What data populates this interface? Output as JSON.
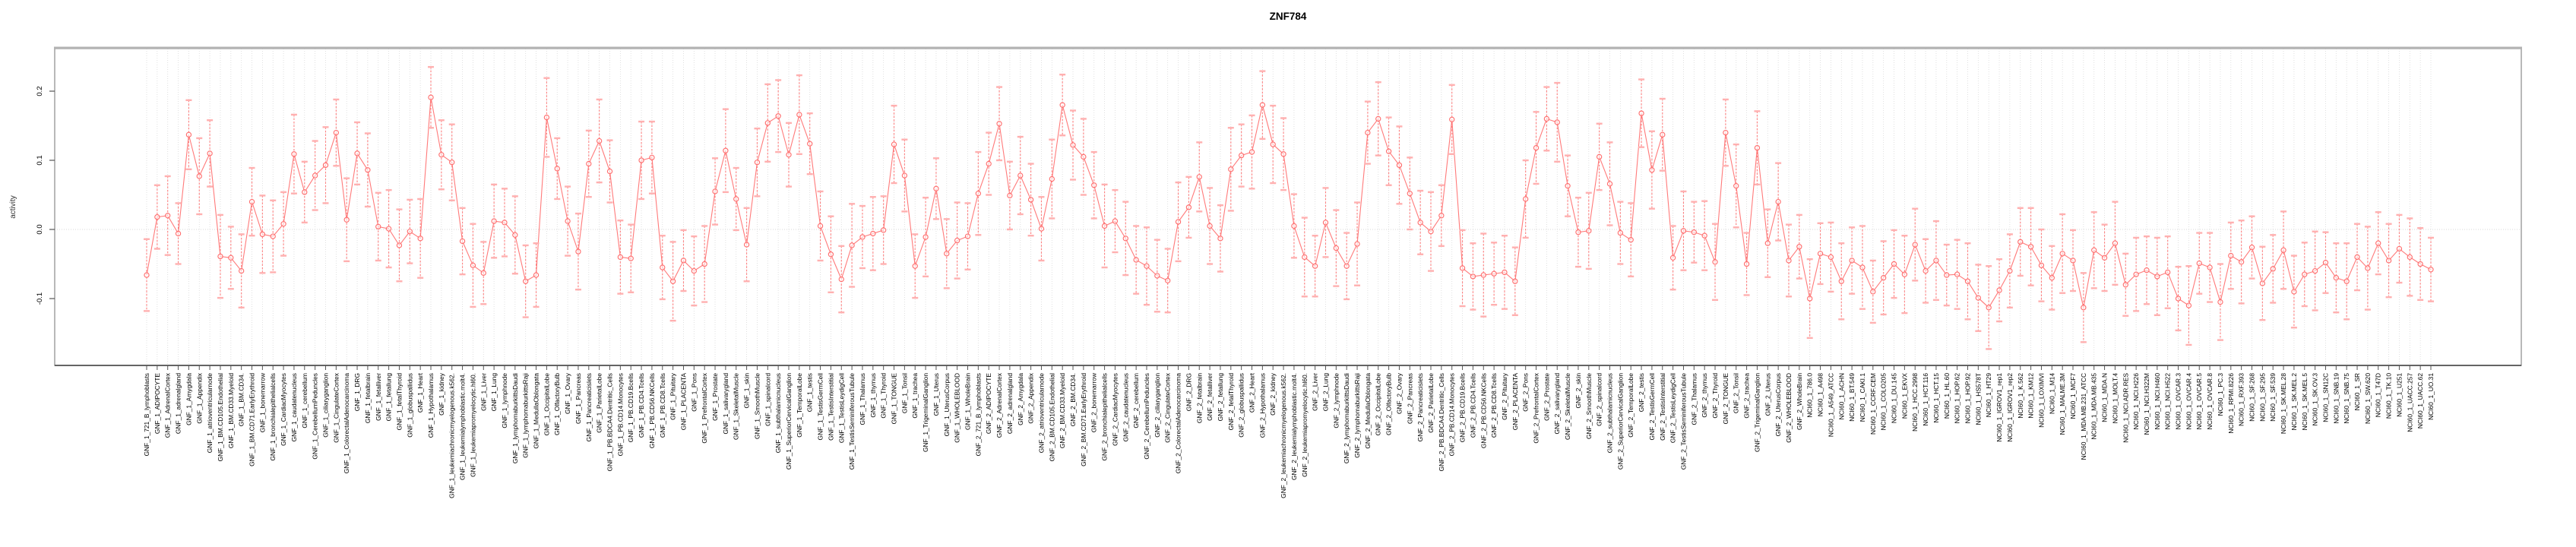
{
  "title": "ZNF784",
  "colors": {
    "series": "#ff6b6b",
    "error_cap": "#ffb0b0",
    "gridline": "#d9d9d9",
    "frame": "#999999",
    "frame_top": "#b3b3b3",
    "axis": "#555555",
    "text": "#000000"
  },
  "chart_data": {
    "type": "line",
    "error_bars": true,
    "title": "ZNF784",
    "xlabel": "",
    "ylabel": "activity",
    "ylim": [
      -0.197,
      0.262
    ],
    "grid": "vertical-dotted-per-category, dotted-zero-line",
    "legend": "none",
    "yticks": [
      {
        "label": "0.2",
        "value": 0.2
      },
      {
        "label": "0.1",
        "value": 0.1
      },
      {
        "label": "0.0",
        "value": 0.0
      },
      {
        "label": "-0.1",
        "value": -0.1
      }
    ],
    "categories": [
      "GNF_1_721_B_lymphoblasts",
      "GNF_1_ADIPOCYTE",
      "GNF_1_AdrenalCortex",
      "GNF_1_adrenalgland",
      "GNF_1_Amygdala",
      "GNF_1_Appendix",
      "GNF_1_atrioventricularnode",
      "GNF_1_BM.CD105.Endothelial",
      "GNF_1_BM.CD33.Myeloid",
      "GNF_1_BM.CD34.",
      "GNF_1_BM.CD71.EarlyErythroid",
      "GNF_1_bonemarrow",
      "GNF_1_bronchialepithelialcells",
      "GNF_1_CardiacMyocytes",
      "GNF_1_caudatenucleus",
      "GNF_1_cerebellum",
      "GNF_1_CerebellumPeduncles",
      "GNF_1_ciliaryganglion",
      "GNF_1_CingulateCortex",
      "GNF_1_ColorectalAdenocarcinoma",
      "GNF_1_DRG",
      "GNF_1_fetalbrain",
      "GNF_1_fetalliver",
      "GNF_1_fetallung",
      "GNF_1_fetalThyroid",
      "GNF_1_globuspallidus",
      "GNF_1_Heart",
      "GNF_1_Hypothalamus",
      "GNF_1_kidney",
      "GNF_1_leukemiachronicmyelogenous.k562.",
      "GNF_1_leukemialymphoblastic.molt4.",
      "GNF_1_leukemiapromyelocytic.hl60.",
      "GNF_1_Liver",
      "GNF_1_Lung",
      "GNF_1_lymphnode",
      "GNF_1_lymphomaburkittsDaudi",
      "GNF_1_lymphomaburkittsRaji",
      "GNF_1_MedullaOblongata",
      "GNF_1_OccipitalLobe",
      "GNF_1_OlfactoryBulb",
      "GNF_1_Ovary",
      "GNF_1_Pancreas",
      "GNF_1_Pancreaticislets",
      "GNF_1_ParietalLobe",
      "GNF_1_PB.BDCA4.Dentritic_Cells",
      "GNF_1_PB.CD14.Monocytes",
      "GNF_1_PB.CD19.Bcells",
      "GNF_1_PB.CD4.Tcells",
      "GNF_1_PB.CD56.NKCells",
      "GNF_1_PB.CD8.Tcells",
      "GNF_1_Pituitary",
      "GNF_1_PLACENTA",
      "GNF_1_Pons",
      "GNF_1_PrefrontalCortex",
      "GNF_1_Prostate",
      "GNF_1_salivarygland",
      "GNF_1_SkeletalMuscle",
      "GNF_1_skin",
      "GNF_1_SmoothMuscle",
      "GNF_1_spinalcord",
      "GNF_1_subthalamicnucleus",
      "GNF_1_SuperiorCervicalGanglion",
      "GNF_1_TemporalLobe",
      "GNF_1_testis",
      "GNF_1_TestisGermCell",
      "GNF_1_TestisInterstitial",
      "GNF_1_TestisLeydigCell",
      "GNF_1_TestisSeminiferousTubule",
      "GNF_1_Thalamus",
      "GNF_1_thymus",
      "GNF_1_Thyroid",
      "GNF_1_TONGUE",
      "GNF_1_Tonsil",
      "GNF_1_trachea",
      "GNF_1_TrigeminalGanglion",
      "GNF_1_Uterus",
      "GNF_1_UterusCorpus",
      "GNF_1_WHOLEBLOOD",
      "GNF_1_WholeBrain",
      "GNF_2_721_B_lymphoblasts",
      "GNF_2_ADIPOCYTE",
      "GNF_2_AdrenalCortex",
      "GNF_2_adrenalgland",
      "GNF_2_Amygdala",
      "GNF_2_Appendix",
      "GNF_2_atrioventricularnode",
      "GNF_2_BM.CD105.Endothelial",
      "GNF_2_BM.CD33.Myeloid",
      "GNF_2_BM.CD34.",
      "GNF_2_BM.CD71.EarlyErythroid",
      "GNF_2_bonemarrow",
      "GNF_2_bronchialepithelialcells",
      "GNF_2_CardiacMyocytes",
      "GNF_2_caudatenucleus",
      "GNF_2_cerebellum",
      "GNF_2_CerebellumPeduncles",
      "GNF_2_ciliaryganglion",
      "GNF_2_CingulateCortex",
      "GNF_2_ColorectalAdenocarcinoma",
      "GNF_2_DRG",
      "GNF_2_fetalbrain",
      "GNF_2_fetalliver",
      "GNF_2_fetallung",
      "GNF_2_fetalThyroid",
      "GNF_2_globuspallidus",
      "GNF_2_Heart",
      "GNF_2_Hypothalamus",
      "GNF_2_kidney",
      "GNF_2_leukemiachronicmyelogenous.k562.",
      "GNF_2_leukemialymphoblastic.molt4.",
      "GNF_2_leukemiapromyelocytic.hl60.",
      "GNF_2_Liver",
      "GNF_2_Lung",
      "GNF_2_lymphnode",
      "GNF_2_lymphomaburkittsDaudi",
      "GNF_2_lymphomaburkittsRaji",
      "GNF_2_MedullaOblongata",
      "GNF_2_OccipitalLobe",
      "GNF_2_OlfactoryBulb",
      "GNF_2_Ovary",
      "GNF_2_Pancreas",
      "GNF_2_Pancreaticislets",
      "GNF_2_ParietalLobe",
      "GNF_2_PB.BDCA4.Dentritic_Cells",
      "GNF_2_PB.CD14.Monocytes",
      "GNF_2_PB.CD19.Bcells",
      "GNF_2_PB.CD4.Tcells",
      "GNF_2_PB.CD56.NKCells",
      "GNF_2_PB.CD8.Tcells",
      "GNF_2_Pituitary",
      "GNF_2_PLACENTA",
      "GNF_2_Pons",
      "GNF_2_PrefrontalCortex",
      "GNF_2_Prostate",
      "GNF_2_salivarygland",
      "GNF_2_SkeletalMuscle",
      "GNF_2_skin",
      "GNF_2_SmoothMuscle",
      "GNF_2_spinalcord",
      "GNF_2_subthalamicnucleus",
      "GNF_2_SuperiorCervicalGanglion",
      "GNF_2_TemporalLobe",
      "GNF_2_testis",
      "GNF_2_TestisGermCell",
      "GNF_2_TestisInterstitial",
      "GNF_2_TestisLeydigCell",
      "GNF_2_TestisSeminiferousTubule",
      "GNF_2_Thalamus",
      "GNF_2_thymus",
      "GNF_2_Thyroid",
      "GNF_2_TONGUE",
      "GNF_2_Tonsil",
      "GNF_2_trachea",
      "GNF_2_TrigeminalGanglion",
      "GNF_2_Uterus",
      "GNF_2_UterusCorpus",
      "GNF_2_WHOLEBLOOD",
      "GNF_2_WholeBrain",
      "NCI60_1_786.0",
      "NCI60_1_A498",
      "NCI60_1_A549_ATCC",
      "NCI60_1_ACHN",
      "NCI60_1_BT.549",
      "NCI60_1_CAKI.1",
      "NCI60_1_CCRF.CEM",
      "NCI60_1_COLO205",
      "NCI60_1_DU.145",
      "NCI60_1_EKVX",
      "NCI60_1_HCC.2998",
      "NCI60_1_HCT.116",
      "NCI60_1_HCT.15",
      "NCI60_1_HL.60",
      "NCI60_1_HOP.62",
      "NCI60_1_HOP.92",
      "NCI60_1_HS578T",
      "NCI60_1_HT29",
      "NCI60_1_IGROV1_rep1",
      "NCI60_1_IGROV1_rep2",
      "NCI60_1_K.562",
      "NCI60_1_KM12",
      "NCI60_1_LOXIMVI",
      "NCI60_1_M14",
      "NCI60_1_MALME.3M",
      "NCI60_1_MCF7",
      "NCI60_1_MDA.MB.231_ATCC",
      "NCI60_1_MDA.MB.435",
      "NCI60_1_MDA.N",
      "NCI60_1_MOLT.4",
      "NCI60_1_NCI.ADR.RES",
      "NCI60_1_NCI.H226",
      "NCI60_1_NCI.H322M",
      "NCI60_1_NCI.H460",
      "NCI60_1_NCI.H522",
      "NCI60_1_OVCAR.3",
      "NCI60_1_OVCAR.4",
      "NCI60_1_OVCAR.5",
      "NCI60_1_OVCAR.8",
      "NCI60_1_PC.3",
      "NCI60_1_RPMI.8226",
      "NCI60_1_RXF.393",
      "NCI60_1_SF.268",
      "NCI60_1_SF.295",
      "NCI60_1_SF.539",
      "NCI60_1_SK.MEL.28",
      "NCI60_1_SK.MEL.2",
      "NCI60_1_SK.MEL.5",
      "NCI60_1_SK.OV.3",
      "NCI60_1_SN12C",
      "NCI60_1_SNB.19",
      "NCI60_1_SNB.75",
      "NCI60_1_SR",
      "NCI60_1_SW.620",
      "NCI60_1_T47D",
      "NCI60_1_TK.10",
      "NCI60_1_U251",
      "NCI60_1_UACC.257",
      "NCI60_1_UACC.62",
      "NCI60_1_UO.31"
    ],
    "values": [
      -0.066,
      0.018,
      0.02,
      -0.006,
      0.137,
      0.077,
      0.11,
      -0.039,
      -0.041,
      -0.06,
      0.04,
      -0.007,
      -0.01,
      0.008,
      0.109,
      0.054,
      0.078,
      0.093,
      0.14,
      0.014,
      0.11,
      0.086,
      0.004,
      0.001,
      -0.023,
      -0.003,
      -0.013,
      0.191,
      0.108,
      0.097,
      -0.017,
      -0.052,
      -0.063,
      0.012,
      0.01,
      -0.008,
      -0.075,
      -0.066,
      0.162,
      0.088,
      0.012,
      -0.032,
      0.095,
      0.128,
      0.084,
      -0.04,
      -0.042,
      0.1,
      0.104,
      -0.055,
      -0.075,
      -0.045,
      -0.06,
      -0.05,
      0.055,
      0.114,
      0.044,
      -0.022,
      0.097,
      0.154,
      0.164,
      0.108,
      0.166,
      0.124,
      0.005,
      -0.036,
      -0.072,
      -0.023,
      -0.011,
      -0.006,
      -0.001,
      0.123,
      0.078,
      -0.053,
      -0.011,
      0.059,
      -0.035,
      -0.016,
      -0.01,
      0.052,
      0.095,
      0.153,
      0.049,
      0.078,
      0.043,
      0.001,
      0.073,
      0.18,
      0.122,
      0.105,
      0.064,
      0.005,
      0.012,
      -0.013,
      -0.044,
      -0.053,
      -0.067,
      -0.074,
      0.011,
      0.032,
      0.076,
      0.005,
      -0.013,
      0.087,
      0.107,
      0.112,
      0.18,
      0.123,
      0.109,
      0.005,
      -0.04,
      -0.053,
      0.01,
      -0.027,
      -0.053,
      -0.021,
      0.14,
      0.16,
      0.113,
      0.093,
      0.052,
      0.01,
      -0.003,
      0.02,
      0.159,
      -0.056,
      -0.068,
      -0.066,
      -0.064,
      -0.062,
      -0.075,
      0.044,
      0.118,
      0.16,
      0.155,
      0.063,
      -0.004,
      -0.002,
      0.105,
      0.066,
      -0.005,
      -0.015,
      0.168,
      0.086,
      0.137,
      -0.041,
      -0.002,
      -0.004,
      -0.009,
      -0.047,
      0.14,
      0.063,
      -0.05,
      0.118,
      -0.02,
      0.04,
      -0.045,
      -0.025,
      -0.1,
      -0.035,
      -0.04,
      -0.075,
      -0.045,
      -0.055,
      -0.09,
      -0.07,
      -0.05,
      -0.065,
      -0.022,
      -0.06,
      -0.045,
      -0.066,
      -0.065,
      -0.075,
      -0.099,
      -0.113,
      -0.088,
      -0.06,
      -0.018,
      -0.025,
      -0.052,
      -0.07,
      -0.035,
      -0.045,
      -0.113,
      -0.03,
      -0.041,
      -0.02,
      -0.08,
      -0.065,
      -0.059,
      -0.068,
      -0.062,
      -0.1,
      -0.11,
      -0.049,
      -0.055,
      -0.105,
      -0.038,
      -0.047,
      -0.026,
      -0.078,
      -0.057,
      -0.03,
      -0.09,
      -0.065,
      -0.06,
      -0.048,
      -0.07,
      -0.075,
      -0.04,
      -0.056,
      -0.02,
      -0.045,
      -0.028,
      -0.04,
      -0.05,
      -0.058
    ],
    "errors": [
      0.052,
      0.046,
      0.057,
      0.044,
      0.05,
      0.055,
      0.048,
      0.06,
      0.045,
      0.053,
      0.049,
      0.056,
      0.052,
      0.046,
      0.057,
      0.044,
      0.05,
      0.055,
      0.048,
      0.06,
      0.045,
      0.053,
      0.049,
      0.056,
      0.052,
      0.046,
      0.057,
      0.044,
      0.05,
      0.055,
      0.048,
      0.06,
      0.045,
      0.053,
      0.049,
      0.056,
      0.052,
      0.046,
      0.057,
      0.044,
      0.05,
      0.055,
      0.048,
      0.06,
      0.045,
      0.053,
      0.049,
      0.056,
      0.052,
      0.046,
      0.057,
      0.044,
      0.05,
      0.055,
      0.048,
      0.06,
      0.045,
      0.053,
      0.049,
      0.056,
      0.052,
      0.046,
      0.057,
      0.044,
      0.05,
      0.055,
      0.048,
      0.06,
      0.045,
      0.053,
      0.049,
      0.056,
      0.052,
      0.046,
      0.057,
      0.044,
      0.05,
      0.055,
      0.048,
      0.06,
      0.045,
      0.053,
      0.049,
      0.056,
      0.052,
      0.046,
      0.057,
      0.044,
      0.05,
      0.055,
      0.048,
      0.06,
      0.045,
      0.053,
      0.049,
      0.056,
      0.052,
      0.046,
      0.057,
      0.044,
      0.05,
      0.055,
      0.048,
      0.06,
      0.045,
      0.053,
      0.049,
      0.056,
      0.052,
      0.046,
      0.057,
      0.044,
      0.05,
      0.055,
      0.048,
      0.06,
      0.045,
      0.053,
      0.049,
      0.056,
      0.052,
      0.046,
      0.057,
      0.044,
      0.05,
      0.055,
      0.048,
      0.06,
      0.045,
      0.053,
      0.049,
      0.056,
      0.052,
      0.046,
      0.057,
      0.044,
      0.05,
      0.055,
      0.048,
      0.06,
      0.045,
      0.053,
      0.049,
      0.056,
      0.052,
      0.046,
      0.057,
      0.044,
      0.05,
      0.055,
      0.048,
      0.06,
      0.045,
      0.053,
      0.049,
      0.056,
      0.052,
      0.046,
      0.057,
      0.044,
      0.05,
      0.055,
      0.048,
      0.06,
      0.045,
      0.053,
      0.049,
      0.056,
      0.052,
      0.046,
      0.057,
      0.044,
      0.05,
      0.055,
      0.048,
      0.06,
      0.045,
      0.053,
      0.049,
      0.056,
      0.052,
      0.046,
      0.057,
      0.044,
      0.05,
      0.055,
      0.048,
      0.06,
      0.045,
      0.053,
      0.049,
      0.056,
      0.052,
      0.046,
      0.057,
      0.044,
      0.05,
      0.055,
      0.048,
      0.06,
      0.045,
      0.053,
      0.049,
      0.056,
      0.052,
      0.046,
      0.057,
      0.044,
      0.05,
      0.055,
      0.048,
      0.06,
      0.045,
      0.053,
      0.049,
      0.056,
      0.052,
      0.046
    ]
  }
}
